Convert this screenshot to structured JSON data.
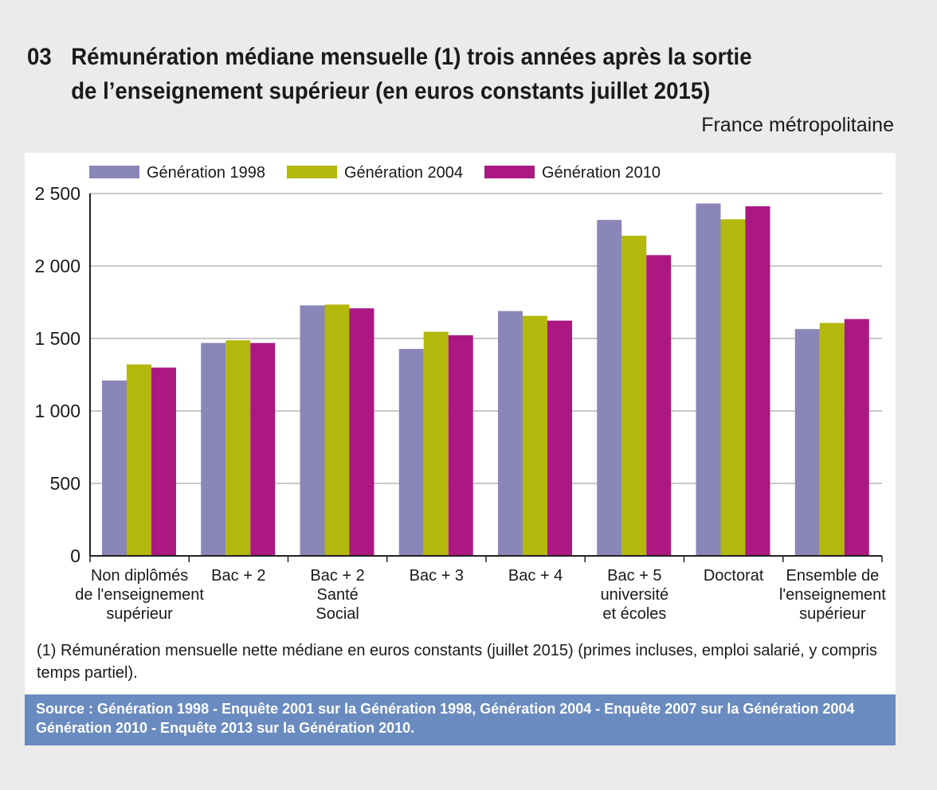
{
  "header": {
    "number": "03",
    "title_line1": "Rémunération médiane mensuelle (1) trois années après la sortie",
    "title_line2": "de l’enseignement supérieur (en euros constants juillet 2015)",
    "subtitle": "France métropolitaine"
  },
  "chart_data": {
    "type": "bar",
    "categories": [
      [
        "Non diplômés",
        "de l'enseignement",
        "supérieur"
      ],
      [
        "Bac + 2"
      ],
      [
        "Bac + 2",
        "Santé",
        "Social"
      ],
      [
        "Bac + 3"
      ],
      [
        "Bac + 4"
      ],
      [
        "Bac + 5",
        "université",
        "et écoles"
      ],
      [
        "Doctorat"
      ],
      [
        "Ensemble de",
        "l'enseignement",
        "supérieur"
      ]
    ],
    "series": [
      {
        "name": "Génération 1998",
        "color": "#8a86b8",
        "values": [
          1210,
          1469,
          1728,
          1428,
          1689,
          2318,
          2431,
          1565
        ]
      },
      {
        "name": "Génération 2004",
        "color": "#b2b80c",
        "values": [
          1321,
          1487,
          1734,
          1546,
          1656,
          2209,
          2322,
          1607
        ]
      },
      {
        "name": "Génération 2010",
        "color": "#ab1882",
        "values": [
          1299,
          1469,
          1708,
          1522,
          1623,
          2075,
          2412,
          1634
        ]
      }
    ],
    "yticks": [
      "0",
      "500",
      "1 000",
      "1 500",
      "2 000",
      "2 500"
    ],
    "ylim": [
      0,
      2500
    ],
    "grid": true,
    "legend": "top"
  },
  "footnote": "(1) Rémunération mensuelle nette médiane en euros constants (juillet 2015) (primes incluses, emploi salarié, y compris temps partiel).",
  "source": {
    "line1": "Source  : Génération 1998 - Enquête 2001 sur la Génération 1998, Génération 2004 - Enquête 2007 sur la Génération 2004",
    "line2": "Génération 2010 - Enquête 2013 sur la Génération 2010."
  }
}
